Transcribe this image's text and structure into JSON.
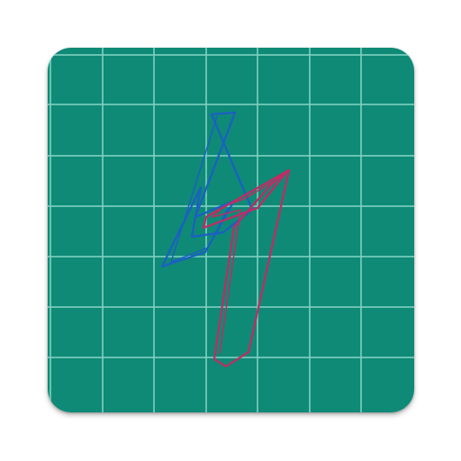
{
  "icon": {
    "name": "grid-logo-app-icon",
    "colors": {
      "background": "#0e8a76",
      "grid_line": "#7fd0c2",
      "left_stroke": "#1c5fc4",
      "right_stroke": "#c42a63",
      "page_background": "#ffffff"
    }
  }
}
